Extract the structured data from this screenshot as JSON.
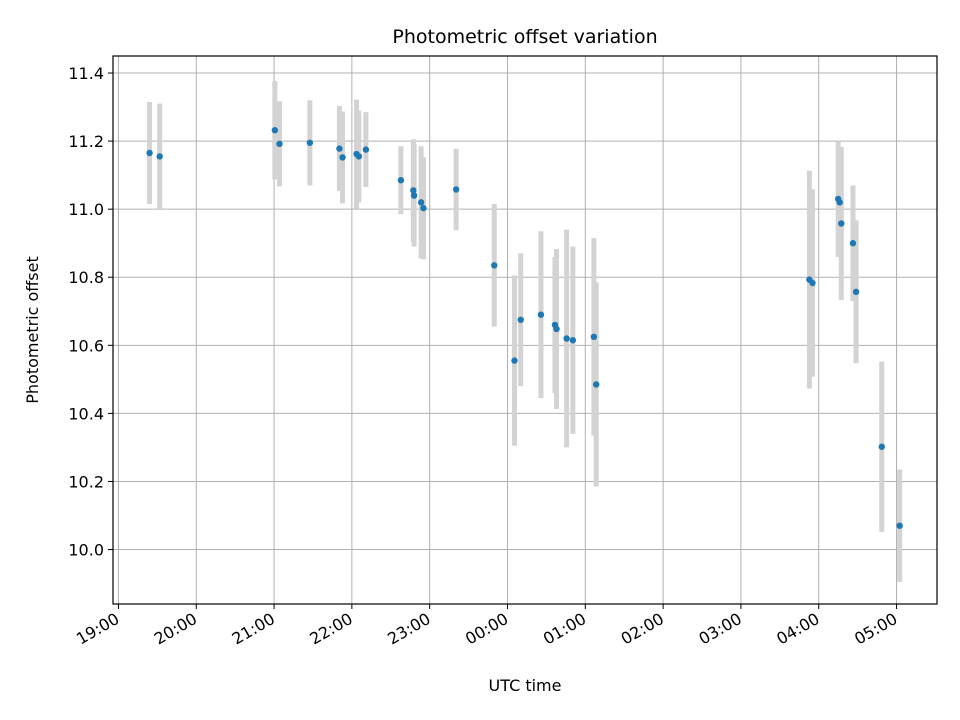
{
  "chart_data": {
    "type": "scatter",
    "title": "Photometric offset variation",
    "xlabel": "UTC time",
    "ylabel": "Photometric offset",
    "x_tick_labels": [
      "19:00",
      "20:00",
      "21:00",
      "22:00",
      "23:00",
      "00:00",
      "01:00",
      "02:00",
      "03:00",
      "04:00",
      "05:00"
    ],
    "y_ticks": [
      10.0,
      10.2,
      10.4,
      10.6,
      10.8,
      11.0,
      11.2,
      11.4
    ],
    "y_tick_labels": [
      "10.0",
      "10.2",
      "10.4",
      "10.6",
      "10.8",
      "11.0",
      "11.2",
      "11.4"
    ],
    "xlim_hours": [
      18.93,
      29.52
    ],
    "ylim": [
      9.84,
      11.45
    ],
    "grid": true,
    "colors": {
      "point": "#1f77b4",
      "errorbar": "#d3d3d3",
      "grid": "#b0b0b0"
    },
    "series": [
      {
        "x": [
          "19:24",
          "19:36",
          "21:00",
          "21:04",
          "21:27",
          "21:50",
          "21:54",
          "22:04",
          "22:06",
          "22:12",
          "22:38",
          "22:50",
          "22:51",
          "22:56",
          "22:58",
          "23:21",
          "23:51",
          "00:08",
          "00:13",
          "00:26",
          "00:36",
          "00:38",
          "00:46",
          "00:50",
          "01:07",
          "01:08",
          "03:53",
          "03:55",
          "04:16",
          "04:17",
          "04:18",
          "04:27",
          "04:29",
          "04:48",
          "05:02"
        ],
        "x_hours": [
          19.4,
          19.53,
          21.01,
          21.07,
          21.46,
          21.84,
          21.88,
          22.06,
          22.09,
          22.18,
          22.63,
          22.79,
          22.8,
          22.89,
          22.92,
          23.34,
          23.83,
          24.09,
          24.17,
          24.43,
          24.61,
          24.63,
          24.76,
          24.84,
          25.11,
          25.14,
          27.88,
          27.92,
          28.25,
          28.27,
          28.29,
          28.44,
          28.48,
          28.81,
          29.04
        ],
        "y": [
          11.165,
          11.155,
          11.232,
          11.192,
          11.195,
          11.178,
          11.152,
          11.162,
          11.155,
          11.175,
          11.085,
          11.055,
          11.04,
          11.02,
          11.003,
          11.058,
          10.835,
          10.555,
          10.675,
          10.69,
          10.66,
          10.648,
          10.62,
          10.615,
          10.625,
          10.485,
          10.793,
          10.783,
          11.03,
          11.02,
          10.958,
          10.9,
          10.757,
          10.302,
          10.07
        ],
        "yerr": [
          0.15,
          0.155,
          0.145,
          0.125,
          0.125,
          0.125,
          0.135,
          0.16,
          0.135,
          0.11,
          0.1,
          0.15,
          0.15,
          0.165,
          0.15,
          0.12,
          0.18,
          0.25,
          0.195,
          0.245,
          0.2,
          0.235,
          0.32,
          0.275,
          0.29,
          0.3,
          0.32,
          0.275,
          0.17,
          0.15,
          0.225,
          0.17,
          0.21,
          0.25,
          0.165
        ]
      }
    ]
  }
}
